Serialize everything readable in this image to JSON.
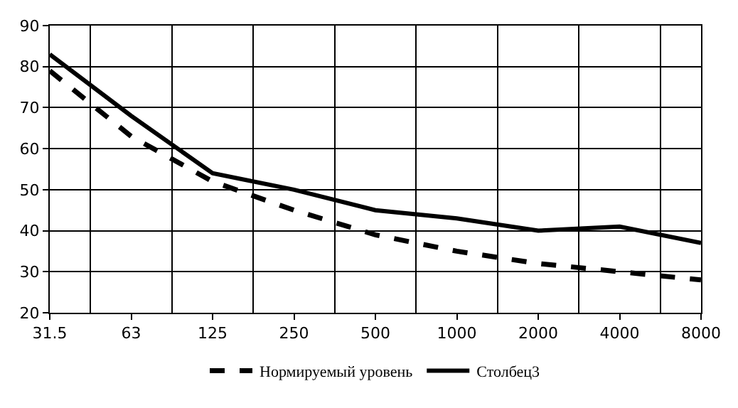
{
  "chart_data": {
    "type": "line",
    "categories": [
      "31.5",
      "63",
      "125",
      "250",
      "500",
      "1000",
      "2000",
      "4000",
      "8000"
    ],
    "series": [
      {
        "name": "Нормируемый уровень",
        "color": "#000000",
        "line_style": "dashed",
        "values": [
          79,
          63,
          52,
          45,
          39,
          35,
          32,
          30,
          28
        ]
      },
      {
        "name": "Столбец3",
        "color": "#000000",
        "line_style": "solid",
        "values": [
          83,
          68,
          54,
          50,
          45,
          43,
          40,
          41,
          37
        ]
      }
    ],
    "ylim": [
      20,
      90
    ],
    "yticks": [
      20,
      30,
      40,
      50,
      60,
      70,
      80,
      90
    ],
    "grid": true,
    "legend": "bottom",
    "marker": "none"
  }
}
